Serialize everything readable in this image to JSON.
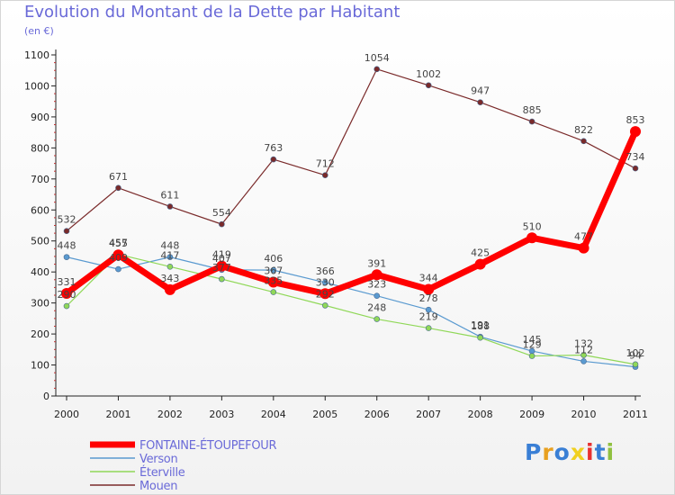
{
  "title": "Evolution du Montant de la Dette par Habitant",
  "subtitle": "(en €)",
  "logo": {
    "text": "Proxiti",
    "letter_colors": [
      "#3a7fd5",
      "#e8a020",
      "#3a7fd5",
      "#f0d020",
      "#e83030",
      "#3a7fd5",
      "#90c040"
    ]
  },
  "chart_data": {
    "type": "line",
    "x": [
      "2000",
      "2001",
      "2002",
      "2003",
      "2004",
      "2005",
      "2006",
      "2007",
      "2008",
      "2009",
      "2010",
      "2011"
    ],
    "ylim": [
      0,
      1100
    ],
    "yticks": [
      0,
      100,
      200,
      300,
      400,
      500,
      600,
      700,
      800,
      900,
      1000,
      1100
    ],
    "grid": false,
    "legend_position": "bottom-left",
    "series": [
      {
        "name": "FONTAINE-ÉTOUPEFOUR",
        "color": "#ff0000",
        "width": 7,
        "marker": 6,
        "values": [
          331,
          455,
          343,
          419,
          367,
          330,
          391,
          344,
          425,
          510,
          477,
          853
        ]
      },
      {
        "name": "Verson",
        "color": "#5a9ad0",
        "width": 1.2,
        "marker": 3,
        "values": [
          448,
          409,
          448,
          407,
          406,
          366,
          323,
          278,
          191,
          145,
          112,
          94
        ]
      },
      {
        "name": "Éterville",
        "color": "#90d858",
        "width": 1.2,
        "marker": 3,
        "values": [
          290,
          457,
          417,
          377,
          335,
          292,
          248,
          219,
          188,
          129,
          132,
          102
        ]
      },
      {
        "name": "Mouen",
        "color": "#7a2a2a",
        "width": 1.2,
        "marker": 3,
        "values": [
          532,
          671,
          611,
          554,
          763,
          712,
          1054,
          1002,
          947,
          885,
          822,
          734
        ]
      }
    ]
  }
}
